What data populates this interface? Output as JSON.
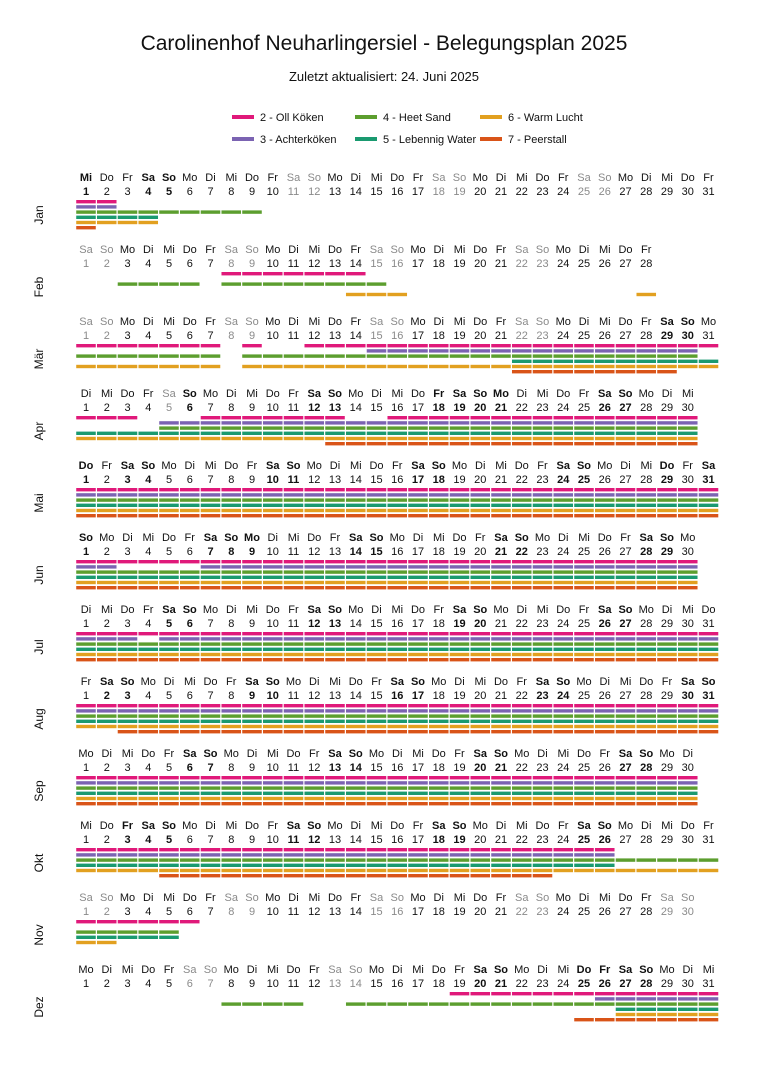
{
  "title": "Carolinenhof Neuharlingersiel - Belegungsplan 2025",
  "subtitle": "Zuletzt aktualisiert: 24. Juni 2025",
  "colors": {
    "oll_koken": "#e0197a",
    "achterkoken": "#7b63b2",
    "heet_sand": "#5c9e2e",
    "lebennig_water": "#1a9a70",
    "warm_lucht": "#e2a020",
    "peerstall": "#d95418",
    "weekday_label": "#111111",
    "weekend_label": "#8a8a8a"
  },
  "chart_data": {
    "type": "timeline",
    "title": "Carolinenhof Neuharlingersiel - Belegungsplan 2025",
    "subtitle": "Zuletzt aktualisiert: 24. Juni 2025",
    "legend_position": "top",
    "legend": [
      {
        "key": "oll_koken",
        "label": "2 - Oll Köken"
      },
      {
        "key": "heet_sand",
        "label": "4 - Heet Sand"
      },
      {
        "key": "warm_lucht",
        "label": "6 - Warm Lucht"
      },
      {
        "key": "achterkoken",
        "label": "3 - Achterköken"
      },
      {
        "key": "lebennig_water",
        "label": "5 - Lebennig Water"
      },
      {
        "key": "peerstall",
        "label": "7 - Peerstall"
      }
    ],
    "series_order": [
      "oll_koken",
      "achterkoken",
      "heet_sand",
      "lebennig_water",
      "warm_lucht",
      "peerstall"
    ],
    "months": [
      {
        "label": "Jan",
        "start": "Mi",
        "days": 31,
        "bold": [
          1,
          4,
          5
        ],
        "occupied": {
          "oll_koken": [
            [
              1,
              2
            ]
          ],
          "achterkoken": [
            [
              1,
              2
            ]
          ],
          "heet_sand": [
            [
              1,
              9
            ]
          ],
          "lebennig_water": [
            [
              1,
              4
            ]
          ],
          "warm_lucht": [
            [
              1,
              4
            ]
          ],
          "peerstall": [
            [
              1,
              1
            ]
          ]
        }
      },
      {
        "label": "Feb",
        "start": "Sa",
        "days": 28,
        "bold": [],
        "occupied": {
          "oll_koken": [
            [
              8,
              14
            ]
          ],
          "achterkoken": [],
          "heet_sand": [
            [
              3,
              6
            ],
            [
              8,
              15
            ]
          ],
          "lebennig_water": [],
          "warm_lucht": [
            [
              14,
              16
            ],
            [
              28,
              28
            ]
          ],
          "peerstall": []
        }
      },
      {
        "label": "Mär",
        "start": "Sa",
        "days": 31,
        "bold": [
          29,
          30
        ],
        "occupied": {
          "oll_koken": [
            [
              1,
              7
            ],
            [
              9,
              9
            ],
            [
              12,
              31
            ]
          ],
          "achterkoken": [
            [
              15,
              30
            ]
          ],
          "heet_sand": [
            [
              1,
              7
            ],
            [
              9,
              30
            ]
          ],
          "lebennig_water": [
            [
              22,
              31
            ]
          ],
          "warm_lucht": [
            [
              1,
              7
            ],
            [
              9,
              31
            ]
          ],
          "peerstall": [
            [
              22,
              29
            ]
          ]
        }
      },
      {
        "label": "Apr",
        "start": "Di",
        "days": 30,
        "bold": [
          6,
          12,
          13,
          18,
          19,
          20,
          21,
          26,
          27
        ],
        "occupied": {
          "oll_koken": [
            [
              1,
              3
            ],
            [
              7,
              13
            ],
            [
              16,
              30
            ]
          ],
          "achterkoken": [
            [
              5,
              30
            ]
          ],
          "heet_sand": [
            [
              5,
              30
            ]
          ],
          "lebennig_water": [
            [
              1,
              30
            ]
          ],
          "warm_lucht": [
            [
              1,
              4
            ],
            [
              5,
              30
            ]
          ],
          "peerstall": [
            [
              13,
              30
            ]
          ]
        }
      },
      {
        "label": "Mai",
        "start": "Do",
        "days": 31,
        "bold": [
          1,
          3,
          4,
          10,
          11,
          17,
          18,
          24,
          25,
          29,
          31
        ],
        "occupied": {
          "oll_koken": [
            [
              1,
              31
            ]
          ],
          "achterkoken": [
            [
              1,
              31
            ]
          ],
          "heet_sand": [
            [
              1,
              31
            ]
          ],
          "lebennig_water": [
            [
              1,
              31
            ]
          ],
          "warm_lucht": [
            [
              1,
              31
            ]
          ],
          "peerstall": [
            [
              1,
              31
            ]
          ]
        }
      },
      {
        "label": "Jun",
        "start": "So",
        "days": 30,
        "bold": [
          1,
          7,
          8,
          9,
          14,
          15,
          21,
          22,
          28,
          29
        ],
        "occupied": {
          "oll_koken": [
            [
              1,
              30
            ]
          ],
          "achterkoken": [
            [
              1,
              2
            ],
            [
              7,
              30
            ]
          ],
          "heet_sand": [
            [
              1,
              30
            ]
          ],
          "lebennig_water": [
            [
              1,
              30
            ]
          ],
          "warm_lucht": [
            [
              1,
              30
            ]
          ],
          "peerstall": [
            [
              1,
              30
            ]
          ]
        }
      },
      {
        "label": "Jul",
        "start": "Di",
        "days": 31,
        "bold": [
          5,
          6,
          12,
          13,
          19,
          20,
          26,
          27
        ],
        "occupied": {
          "oll_koken": [
            [
              1,
              31
            ]
          ],
          "achterkoken": [
            [
              1,
              3
            ],
            [
              5,
              31
            ]
          ],
          "heet_sand": [
            [
              1,
              31
            ]
          ],
          "lebennig_water": [
            [
              1,
              31
            ]
          ],
          "warm_lucht": [
            [
              1,
              31
            ]
          ],
          "peerstall": [
            [
              1,
              31
            ]
          ]
        }
      },
      {
        "label": "Aug",
        "start": "Fr",
        "days": 31,
        "bold": [
          2,
          3,
          9,
          10,
          16,
          17,
          23,
          24,
          30,
          31
        ],
        "occupied": {
          "oll_koken": [
            [
              1,
              31
            ]
          ],
          "achterkoken": [
            [
              1,
              31
            ]
          ],
          "heet_sand": [
            [
              1,
              31
            ]
          ],
          "lebennig_water": [
            [
              1,
              31
            ]
          ],
          "warm_lucht": [
            [
              1,
              31
            ]
          ],
          "peerstall": [
            [
              3,
              31
            ]
          ]
        }
      },
      {
        "label": "Sep",
        "start": "Mo",
        "days": 30,
        "bold": [
          6,
          7,
          13,
          14,
          20,
          21,
          27,
          28
        ],
        "occupied": {
          "oll_koken": [
            [
              1,
              30
            ]
          ],
          "achterkoken": [
            [
              1,
              30
            ]
          ],
          "heet_sand": [
            [
              1,
              30
            ]
          ],
          "lebennig_water": [
            [
              1,
              30
            ]
          ],
          "warm_lucht": [
            [
              1,
              30
            ]
          ],
          "peerstall": [
            [
              1,
              30
            ]
          ]
        }
      },
      {
        "label": "Okt",
        "start": "Mi",
        "days": 31,
        "bold": [
          3,
          4,
          5,
          11,
          12,
          18,
          19,
          25,
          26
        ],
        "occupied": {
          "oll_koken": [
            [
              1,
              26
            ]
          ],
          "achterkoken": [
            [
              1,
              26
            ]
          ],
          "heet_sand": [
            [
              1,
              31
            ]
          ],
          "lebennig_water": [
            [
              1,
              26
            ]
          ],
          "warm_lucht": [
            [
              1,
              31
            ]
          ],
          "peerstall": [
            [
              5,
              23
            ]
          ]
        }
      },
      {
        "label": "Nov",
        "start": "Sa",
        "days": 30,
        "bold": [],
        "occupied": {
          "oll_koken": [
            [
              1,
              6
            ]
          ],
          "achterkoken": [],
          "heet_sand": [
            [
              1,
              5
            ]
          ],
          "lebennig_water": [
            [
              1,
              5
            ]
          ],
          "warm_lucht": [
            [
              1,
              2
            ]
          ],
          "peerstall": []
        }
      },
      {
        "label": "Dez",
        "start": "Mo",
        "days": 31,
        "bold": [
          20,
          21,
          25,
          26,
          27,
          28
        ],
        "occupied": {
          "oll_koken": [
            [
              19,
              31
            ]
          ],
          "achterkoken": [
            [
              26,
              31
            ]
          ],
          "heet_sand": [
            [
              8,
              11
            ],
            [
              14,
              31
            ]
          ],
          "lebennig_water": [
            [
              27,
              31
            ]
          ],
          "warm_lucht": [
            [
              27,
              31
            ]
          ],
          "peerstall": [
            [
              25,
              31
            ]
          ]
        }
      }
    ]
  }
}
